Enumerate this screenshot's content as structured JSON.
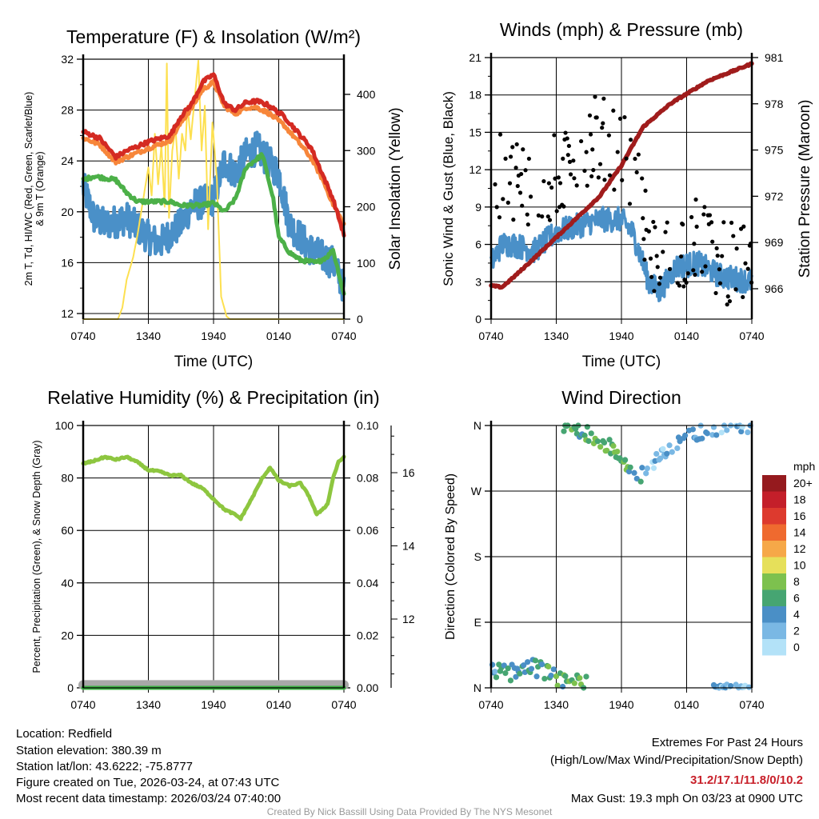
{
  "time_ticks": [
    "0740",
    "1340",
    "1940",
    "0140",
    "0740"
  ],
  "footer": {
    "location": "Location: Redfield",
    "elevation": "Station elevation: 380.39 m",
    "latlon": "Station lat/lon: 43.6222; -75.8777",
    "created": "Figure created on Tue, 2026-03-24, at 07:43 UTC",
    "recent": "Most recent data timestamp: 2026/03/24 07:40:00",
    "extremes_title": "Extremes For Past 24 Hours",
    "extremes_sub": "(High/Low/Max Wind/Precipitation/Snow Depth)",
    "extremes_values": "31.2/17.1/11.8/0/10.2",
    "max_gust": "Max Gust: 19.3 mph On 03/23 at 0900 UTC",
    "credit": "Created By Nick Bassill Using Data Provided By The NYS Mesonet"
  },
  "chart_data": [
    {
      "type": "line",
      "title": "Temperature (F) & Insolation (W/m²)",
      "xlabel": "Time (UTC)",
      "ylabel": [
        "2m T, Td, HI/WC (Red, Green, Scarlet/Blue)",
        "& 9m T (Orange)"
      ],
      "ylabel_right": "Solar Insolation (Yellow)",
      "xlim_hours": [
        0,
        24
      ],
      "ylim": [
        11.56,
        32.4
      ],
      "yticks": [
        12,
        16,
        20,
        24,
        28,
        32
      ],
      "ylim_right": [
        0,
        462
      ],
      "yticks_right": [
        0,
        100,
        200,
        300,
        400
      ],
      "series": [
        {
          "name": "2m T",
          "color": "#d42a22",
          "axis": "left",
          "noise": 0.15,
          "points": [
            [
              0,
              26.3
            ],
            [
              1.5,
              25.8
            ],
            [
              3,
              24.3
            ],
            [
              4,
              24.8
            ],
            [
              6,
              25.5
            ],
            [
              8,
              26
            ],
            [
              9,
              27.5
            ],
            [
              10,
              28.5
            ],
            [
              11,
              30.2
            ],
            [
              12,
              30.8
            ],
            [
              13,
              28.5
            ],
            [
              14,
              28
            ],
            [
              15,
              28.6
            ],
            [
              16,
              28.7
            ],
            [
              17,
              28.4
            ],
            [
              18.5,
              27.5
            ],
            [
              20,
              26
            ],
            [
              21,
              25
            ],
            [
              22,
              23
            ],
            [
              23,
              21
            ],
            [
              24,
              18.2
            ]
          ]
        },
        {
          "name": "9m T",
          "color": "#f7863a",
          "axis": "left",
          "noise": 0.15,
          "points": [
            [
              0,
              25.8
            ],
            [
              1.5,
              25.3
            ],
            [
              3,
              23.9
            ],
            [
              4,
              24.3
            ],
            [
              6,
              25
            ],
            [
              8,
              25.6
            ],
            [
              9,
              27
            ],
            [
              10,
              28.2
            ],
            [
              11,
              29.6
            ],
            [
              12,
              30.2
            ],
            [
              13,
              28.3
            ],
            [
              14,
              27.7
            ],
            [
              15,
              28.2
            ],
            [
              16,
              28.2
            ],
            [
              17,
              27.8
            ],
            [
              18.5,
              26.8
            ],
            [
              20,
              25.3
            ],
            [
              21,
              24.2
            ],
            [
              22,
              22.6
            ],
            [
              23,
              20.6
            ],
            [
              24,
              19
            ]
          ]
        },
        {
          "name": "Dewpoint",
          "color": "#4cb048",
          "axis": "left",
          "noise": 0.15,
          "points": [
            [
              0,
              22.5
            ],
            [
              1,
              22.8
            ],
            [
              3,
              22.5
            ],
            [
              4,
              21.5
            ],
            [
              5,
              20.8
            ],
            [
              8,
              20.8
            ],
            [
              9,
              20.5
            ],
            [
              11,
              20.5
            ],
            [
              12,
              20.7
            ],
            [
              13,
              20
            ],
            [
              14,
              21
            ],
            [
              15,
              23.5
            ],
            [
              16.5,
              24.5
            ],
            [
              17.5,
              21
            ],
            [
              18,
              18
            ],
            [
              19,
              16.8
            ],
            [
              20,
              16.2
            ],
            [
              21.5,
              16
            ],
            [
              22.5,
              16.5
            ],
            [
              23,
              17
            ],
            [
              24,
              13.5
            ]
          ]
        },
        {
          "name": "HI/WC",
          "color": "#4a90c8",
          "axis": "left",
          "noise": 1.3,
          "points": [
            [
              0,
              22
            ],
            [
              1,
              19.5
            ],
            [
              2,
              19
            ],
            [
              4,
              19.5
            ],
            [
              6,
              18
            ],
            [
              7,
              17.5
            ],
            [
              9,
              19
            ],
            [
              10,
              20.5
            ],
            [
              12,
              21
            ],
            [
              13,
              24
            ],
            [
              14,
              23
            ],
            [
              15,
              24.5
            ],
            [
              16,
              25
            ],
            [
              17,
              24
            ],
            [
              18,
              23
            ],
            [
              19,
              19
            ],
            [
              20,
              18
            ],
            [
              21,
              17
            ],
            [
              22,
              16.5
            ],
            [
              23,
              16
            ],
            [
              24,
              14
            ]
          ]
        },
        {
          "name": "Solar Insolation",
          "color": "#fde050",
          "axis": "right",
          "noise": 0,
          "points": [
            [
              0,
              0
            ],
            [
              3.2,
              0
            ],
            [
              3.6,
              20
            ],
            [
              4,
              70
            ],
            [
              4.6,
              110
            ],
            [
              5,
              150
            ],
            [
              5.5,
              210
            ],
            [
              6,
              270
            ],
            [
              6.3,
              220
            ],
            [
              6.6,
              330
            ],
            [
              6.9,
              240
            ],
            [
              7.2,
              310
            ],
            [
              7.5,
              200
            ],
            [
              7.7,
              455
            ],
            [
              7.9,
              180
            ],
            [
              8.2,
              300
            ],
            [
              8.5,
              340
            ],
            [
              8.8,
              250
            ],
            [
              9.1,
              330
            ],
            [
              9.4,
              300
            ],
            [
              9.6,
              380
            ],
            [
              9.9,
              320
            ],
            [
              10.3,
              400
            ],
            [
              10.6,
              460
            ],
            [
              10.9,
              300
            ],
            [
              11.2,
              380
            ],
            [
              11.5,
              160
            ],
            [
              11.9,
              350
            ],
            [
              12.3,
              250
            ],
            [
              12.7,
              40
            ],
            [
              13.2,
              5
            ],
            [
              13.5,
              0
            ],
            [
              24,
              0
            ]
          ]
        }
      ]
    },
    {
      "type": "line+scatter",
      "title": "Winds (mph) & Pressure (mb)",
      "xlabel": "Time (UTC)",
      "ylabel": "Sonic Wind & Gust (Blue, Black)",
      "ylabel_right": "Station Pressure (Maroon)",
      "ylim": [
        0,
        21
      ],
      "yticks": [
        0,
        3,
        6,
        9,
        12,
        15,
        18,
        21
      ],
      "ylim_right": [
        964.03,
        981
      ],
      "yticks_right": [
        966,
        969,
        972,
        975,
        978,
        981
      ],
      "series": [
        {
          "name": "Sonic Wind",
          "color": "#4a90c8",
          "axis": "left",
          "noise": 1.0,
          "points": [
            [
              0,
              4.5
            ],
            [
              1,
              6
            ],
            [
              2,
              6
            ],
            [
              4,
              5.5
            ],
            [
              6,
              7
            ],
            [
              8,
              7.5
            ],
            [
              10,
              8
            ],
            [
              12,
              8
            ],
            [
              13,
              7
            ],
            [
              13.8,
              5
            ],
            [
              14.5,
              3
            ],
            [
              15.5,
              2.2
            ],
            [
              16.5,
              3.5
            ],
            [
              17,
              4.2
            ],
            [
              19,
              4.5
            ],
            [
              21,
              3.5
            ],
            [
              24,
              3
            ]
          ]
        },
        {
          "name": "Gust",
          "color": "#000000",
          "axis": "left",
          "type": "scatter",
          "spread": [
            2,
            8
          ],
          "points": [
            [
              0,
              8
            ],
            [
              1,
              12
            ],
            [
              3,
              11
            ],
            [
              5,
              11
            ],
            [
              6,
              11.5
            ],
            [
              8,
              14
            ],
            [
              10,
              14.5
            ],
            [
              12,
              13.5
            ],
            [
              13.5,
              10
            ],
            [
              14.5,
              6
            ],
            [
              16,
              5
            ],
            [
              19,
              6.5
            ],
            [
              20,
              7
            ],
            [
              21,
              4.5
            ],
            [
              24,
              4
            ]
          ]
        },
        {
          "name": "Station Pressure",
          "color": "#a01c1c",
          "axis": "right",
          "noise": 0.05,
          "points": [
            [
              0,
              966.2
            ],
            [
              1,
              966.1
            ],
            [
              2,
              966.7
            ],
            [
              4,
              968
            ],
            [
              7,
              970
            ],
            [
              10,
              972
            ],
            [
              12,
              974
            ],
            [
              14,
              976.5
            ],
            [
              16.5,
              978
            ],
            [
              20,
              979.5
            ],
            [
              24,
              980.6
            ]
          ]
        }
      ]
    },
    {
      "type": "line",
      "title": "Relative Humidity (%) & Precipitation (in)",
      "ylabel": "Percent, Precipitation (Green), & Snow Depth (Gray)",
      "ylim": [
        0,
        100
      ],
      "yticks": [
        0,
        20,
        40,
        60,
        80,
        100
      ],
      "ylim_right": [
        0,
        0.1
      ],
      "yticks_right": [
        "0.00",
        "0.02",
        "0.04",
        "0.06",
        "0.08",
        "0.10"
      ],
      "ylim_snow": [
        10.1,
        17.3
      ],
      "yticks_snow": [
        12,
        14,
        16
      ],
      "series": [
        {
          "name": "Relative Humidity",
          "color": "#8dc63f",
          "axis": "left",
          "noise": 0.3,
          "points": [
            [
              0,
              85.5
            ],
            [
              1,
              86.5
            ],
            [
              2,
              88
            ],
            [
              3,
              87
            ],
            [
              4,
              88
            ],
            [
              5,
              86
            ],
            [
              6,
              83
            ],
            [
              7,
              82.5
            ],
            [
              8,
              81
            ],
            [
              9,
              81
            ],
            [
              10,
              78
            ],
            [
              11,
              76
            ],
            [
              12,
              72
            ],
            [
              13,
              68
            ],
            [
              14,
              66
            ],
            [
              14.5,
              64.5
            ],
            [
              15.5,
              72
            ],
            [
              16.5,
              80
            ],
            [
              17.2,
              84
            ],
            [
              18,
              79
            ],
            [
              19,
              77
            ],
            [
              20,
              78
            ],
            [
              20.8,
              73
            ],
            [
              21.5,
              66
            ],
            [
              22.5,
              70
            ],
            [
              23,
              80
            ],
            [
              23.5,
              86
            ],
            [
              24,
              88
            ]
          ]
        },
        {
          "name": "Snow Depth",
          "color": "#a8a8a8",
          "axis": "snow",
          "noise": 0,
          "points": [
            [
              0,
              10.2
            ],
            [
              24,
              10.2
            ]
          ]
        },
        {
          "name": "Precipitation",
          "color": "#3cb043",
          "axis": "right",
          "noise": 0,
          "points": [
            [
              0,
              0
            ],
            [
              24,
              0
            ]
          ]
        }
      ]
    },
    {
      "type": "scatter",
      "title": "Wind Direction",
      "ylabel": "Direction (Colored By Speed)",
      "ylim": [
        0,
        360
      ],
      "ytick_labels": [
        "N",
        "E",
        "S",
        "W",
        "N"
      ],
      "yticks": [
        0,
        90,
        180,
        270,
        360
      ],
      "legend": {
        "title": "mph",
        "placement": "right",
        "labels": [
          "20+",
          "18",
          "16",
          "14",
          "12",
          "10",
          "8",
          "6",
          "4",
          "2",
          "0"
        ],
        "colors": [
          "#951a1e",
          "#c41f2a",
          "#dd3a2e",
          "#ef6a2f",
          "#f6a848",
          "#e6e05a",
          "#7dc14e",
          "#46a572",
          "#4a8fc6",
          "#7ab8e4",
          "#b3e2f8"
        ]
      },
      "tracks": [
        {
          "name": "north-easterly early",
          "points": [
            [
              0,
              22
            ],
            [
              2,
              20
            ],
            [
              3.3,
              35
            ],
            [
              4.5,
              25
            ],
            [
              6,
              12
            ],
            [
              7.5,
              6
            ],
            [
              8.8,
              4
            ]
          ],
          "spread": 12
        },
        {
          "name": "north-westerly",
          "points": [
            [
              6.7,
              358
            ],
            [
              8,
              355
            ],
            [
              9.5,
              345
            ],
            [
              11,
              330
            ],
            [
              12.5,
              305
            ],
            [
              13.3,
              285
            ],
            [
              14,
              295
            ],
            [
              15,
              310
            ],
            [
              16.5,
              325
            ],
            [
              18,
              345
            ],
            [
              19.5,
              352
            ],
            [
              21.5,
              358
            ],
            [
              24,
              358
            ]
          ],
          "spread": 10
        },
        {
          "name": "late northerly",
          "points": [
            [
              20.5,
              3
            ],
            [
              22,
              2
            ],
            [
              23.8,
              3
            ]
          ],
          "spread": 3
        }
      ]
    }
  ]
}
